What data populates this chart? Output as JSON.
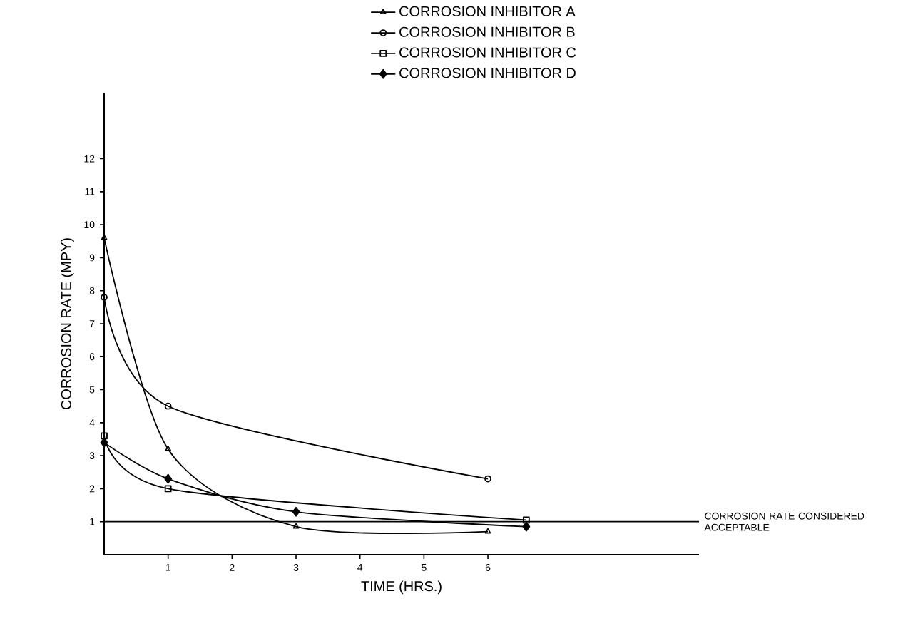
{
  "chart_data": {
    "type": "line",
    "xlabel": "TIME (HRS.)",
    "ylabel": "CORROSION RATE (MPY)",
    "xlim": [
      0,
      9.3
    ],
    "ylim": [
      0,
      14
    ],
    "xticks": [
      1,
      2,
      3,
      4,
      5,
      6
    ],
    "yticks": [
      1,
      2,
      3,
      4,
      5,
      6,
      7,
      8,
      9,
      10,
      11,
      12
    ],
    "legend": "top",
    "series": [
      {
        "name": "CORROSION INHIBITOR A",
        "color": "#000000",
        "marker": "triangle",
        "x": [
          0,
          1,
          3,
          6
        ],
        "values": [
          9.6,
          3.2,
          0.85,
          0.7
        ]
      },
      {
        "name": "CORROSION INHIBITOR B",
        "color": "#000000",
        "marker": "circle",
        "x": [
          0,
          1,
          6
        ],
        "values": [
          7.8,
          4.5,
          2.3
        ]
      },
      {
        "name": "CORROSION INHIBITOR C",
        "color": "#000000",
        "marker": "square",
        "x": [
          0,
          1,
          6.6
        ],
        "values": [
          3.6,
          2.0,
          1.05
        ]
      },
      {
        "name": "CORROSION INHIBITOR D",
        "color": "#000000",
        "marker": "diamond",
        "x": [
          0,
          1,
          3,
          6.6
        ],
        "values": [
          3.4,
          2.3,
          1.3,
          0.85
        ]
      }
    ],
    "ref_lines": [
      {
        "axis": "y",
        "value": 1,
        "label": "CORROSION RATE CONSIDERED ACCEPTABLE",
        "color": "#000000"
      }
    ]
  }
}
